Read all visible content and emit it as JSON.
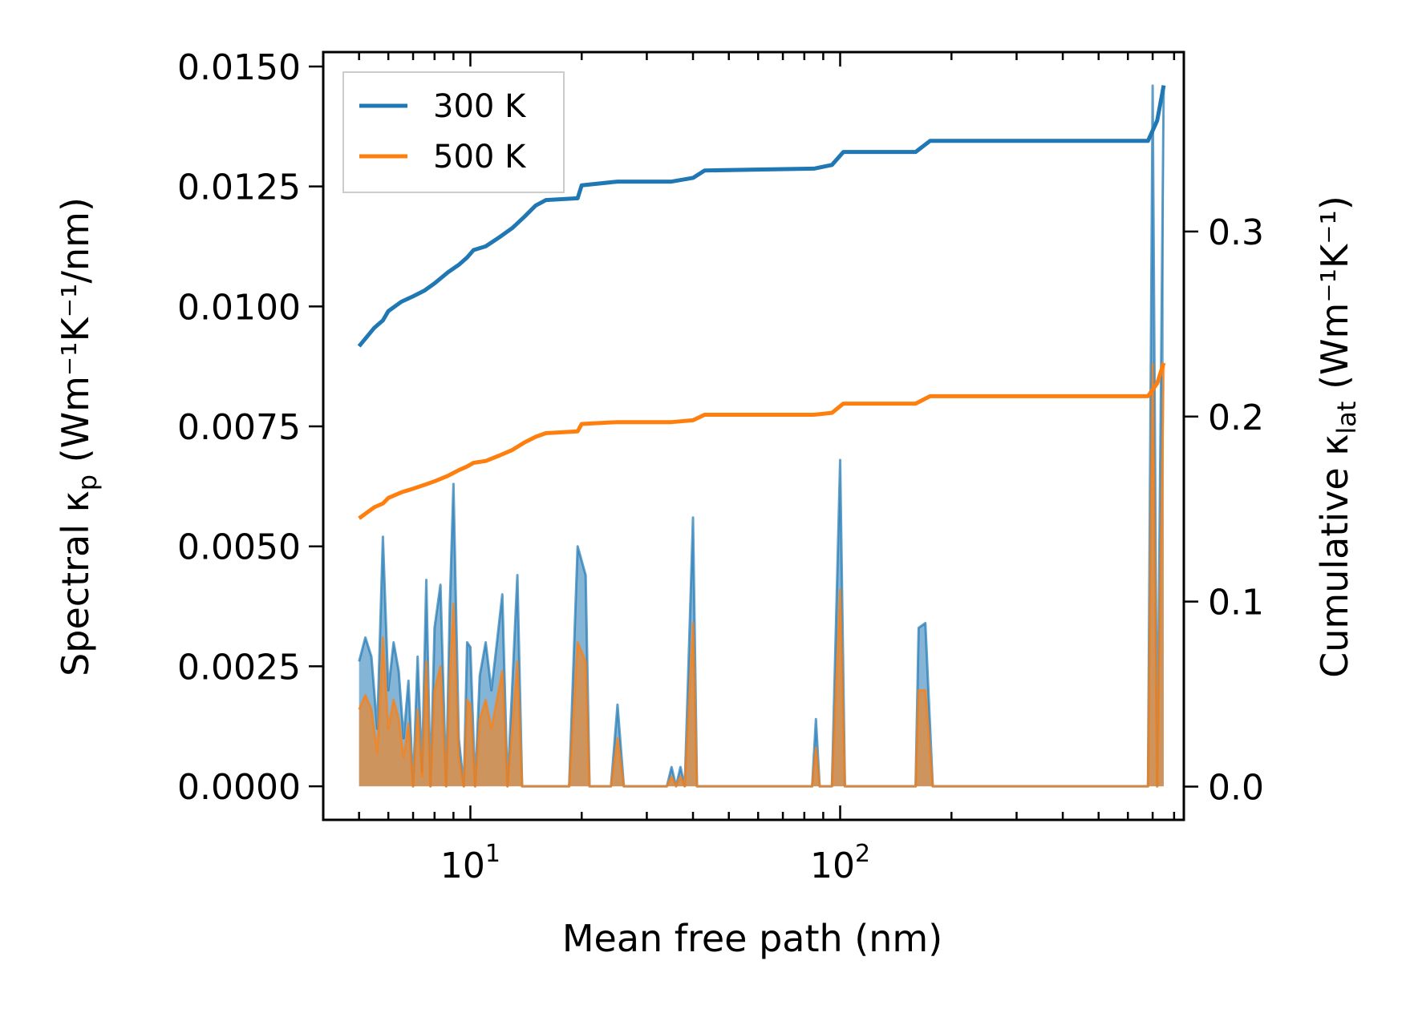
{
  "chart_data": {
    "type": "line",
    "title": "",
    "xlabel": "Mean free path (nm)",
    "ylabel_left": {
      "text": "Spectral κ",
      "sub": "p",
      "unit": " (Wm⁻¹K⁻¹/nm)"
    },
    "ylabel_right": {
      "text": "Cumulative κ",
      "sub": "lat",
      "unit": " (Wm⁻¹K⁻¹)"
    },
    "xscale": "log",
    "xlim": [
      4.0,
      850
    ],
    "ylim_left": [
      -0.0007,
      0.0153
    ],
    "ylim_right": [
      -0.018,
      0.397
    ],
    "x_ticks": [
      {
        "base": "10",
        "exp": "1",
        "value": 10
      },
      {
        "base": "10",
        "exp": "2",
        "value": 100
      }
    ],
    "y_ticks_left": [
      {
        "label": "0.0000",
        "value": 0.0
      },
      {
        "label": "0.0025",
        "value": 0.0025
      },
      {
        "label": "0.0050",
        "value": 0.005
      },
      {
        "label": "0.0075",
        "value": 0.0075
      },
      {
        "label": "0.0100",
        "value": 0.01
      },
      {
        "label": "0.0125",
        "value": 0.0125
      },
      {
        "label": "0.0150",
        "value": 0.015
      }
    ],
    "y_ticks_right": [
      {
        "label": "0.0",
        "value": 0.0
      },
      {
        "label": "0.1",
        "value": 0.1
      },
      {
        "label": "0.2",
        "value": 0.2
      },
      {
        "label": "0.3",
        "value": 0.3
      }
    ],
    "legend": {
      "position": "upper-left",
      "entries": [
        {
          "label": "300 K",
          "color": "#1f77b4"
        },
        {
          "label": "500 K",
          "color": "#ff7f0e"
        }
      ]
    },
    "series": [
      {
        "name": "300 K",
        "color": "#1f77b4",
        "cumulative": {
          "x": [
            5.0,
            5.5,
            5.8,
            6.0,
            6.5,
            7.0,
            7.5,
            8.0,
            8.7,
            9.3,
            9.8,
            10.2,
            11.0,
            12.0,
            13.0,
            14.0,
            15.0,
            16.0,
            19.5,
            20.0,
            25.0,
            27.0,
            35.0,
            40.0,
            43.0,
            85.0,
            95.0,
            102.0,
            120.0,
            160.0,
            175.0,
            680.0,
            720.0,
            750.0
          ],
          "y": [
            0.238,
            0.248,
            0.252,
            0.257,
            0.262,
            0.265,
            0.268,
            0.272,
            0.278,
            0.282,
            0.286,
            0.29,
            0.292,
            0.297,
            0.302,
            0.308,
            0.314,
            0.317,
            0.318,
            0.325,
            0.327,
            0.327,
            0.327,
            0.329,
            0.333,
            0.334,
            0.336,
            0.343,
            0.343,
            0.343,
            0.349,
            0.349,
            0.36,
            0.379
          ]
        },
        "spectral": {
          "x": [
            5.0,
            5.2,
            5.4,
            5.6,
            5.8,
            6.0,
            6.2,
            6.4,
            6.6,
            6.8,
            7.0,
            7.2,
            7.4,
            7.6,
            7.8,
            8.0,
            8.3,
            8.6,
            8.8,
            9.0,
            9.3,
            9.6,
            9.8,
            10.0,
            10.3,
            10.6,
            11.0,
            11.4,
            11.8,
            12.2,
            12.6,
            13.0,
            13.4,
            13.8,
            14.2,
            14.6,
            15.0,
            15.5,
            16.0,
            16.5,
            18.5,
            19.5,
            20.5,
            21.0,
            24.0,
            25.0,
            26.0,
            34.0,
            35.0,
            36.0,
            37.0,
            38.0,
            40.0,
            41.0,
            42.0,
            84.0,
            86.0,
            88.0,
            95.0,
            100.0,
            103.0,
            108.0,
            160.0,
            163.0,
            170.0,
            178.0,
            680.0,
            700.0,
            720.0,
            750.0
          ],
          "y": [
            0.0026,
            0.0031,
            0.0027,
            0.0012,
            0.0052,
            0.002,
            0.003,
            0.0024,
            0.001,
            0.0022,
            0.0,
            0.0027,
            0.0003,
            0.0043,
            0.0,
            0.0033,
            0.0042,
            0.0,
            0.0038,
            0.0063,
            0.001,
            0.0,
            0.003,
            0.0029,
            0.0,
            0.0023,
            0.003,
            0.002,
            0.003,
            0.004,
            0.0,
            0.0022,
            0.0044,
            0.0,
            0.0,
            0.0,
            0.0,
            0.0,
            0.0,
            0.0,
            0.0,
            0.005,
            0.0044,
            0.0,
            0.0,
            0.0017,
            0.0,
            0.0,
            0.0004,
            0.0,
            0.0004,
            0.0,
            0.0056,
            0.0,
            0.0,
            0.0,
            0.0014,
            0.0,
            0.0,
            0.0068,
            0.0,
            0.0,
            0.0,
            0.0033,
            0.0034,
            0.0,
            0.0,
            0.0146,
            0.0,
            0.0146
          ]
        }
      },
      {
        "name": "500 K",
        "color": "#ff7f0e",
        "cumulative": {
          "x": [
            5.0,
            5.5,
            5.8,
            6.0,
            6.5,
            7.0,
            7.5,
            8.0,
            8.7,
            9.3,
            9.8,
            10.2,
            11.0,
            12.0,
            13.0,
            14.0,
            15.0,
            16.0,
            19.5,
            20.0,
            25.0,
            27.0,
            35.0,
            40.0,
            43.0,
            85.0,
            95.0,
            102.0,
            120.0,
            160.0,
            175.0,
            680.0,
            720.0,
            750.0
          ],
          "y": [
            0.145,
            0.151,
            0.153,
            0.156,
            0.159,
            0.161,
            0.163,
            0.165,
            0.168,
            0.171,
            0.173,
            0.175,
            0.176,
            0.179,
            0.182,
            0.186,
            0.189,
            0.191,
            0.192,
            0.196,
            0.197,
            0.197,
            0.197,
            0.198,
            0.201,
            0.201,
            0.202,
            0.207,
            0.207,
            0.207,
            0.211,
            0.211,
            0.218,
            0.229
          ]
        },
        "spectral": {
          "x": [
            5.0,
            5.2,
            5.4,
            5.6,
            5.8,
            6.0,
            6.2,
            6.4,
            6.6,
            6.8,
            7.0,
            7.2,
            7.4,
            7.6,
            7.8,
            8.0,
            8.3,
            8.6,
            8.8,
            9.0,
            9.3,
            9.6,
            9.8,
            10.0,
            10.3,
            10.6,
            11.0,
            11.4,
            11.8,
            12.2,
            12.6,
            13.0,
            13.4,
            13.8,
            14.2,
            14.6,
            15.0,
            15.5,
            16.0,
            16.5,
            18.5,
            19.5,
            20.5,
            21.0,
            24.0,
            25.0,
            26.0,
            34.0,
            35.0,
            36.0,
            37.0,
            38.0,
            40.0,
            41.0,
            42.0,
            84.0,
            86.0,
            88.0,
            95.0,
            100.0,
            103.0,
            108.0,
            160.0,
            163.0,
            170.0,
            178.0,
            680.0,
            700.0,
            720.0,
            750.0
          ],
          "y": [
            0.0016,
            0.0019,
            0.0016,
            0.0007,
            0.0031,
            0.0012,
            0.0018,
            0.0014,
            0.0006,
            0.0013,
            0.0,
            0.0016,
            0.0002,
            0.0026,
            0.0,
            0.002,
            0.0025,
            0.0,
            0.0023,
            0.0038,
            0.0006,
            0.0,
            0.0018,
            0.0017,
            0.0,
            0.0014,
            0.0018,
            0.0012,
            0.0018,
            0.0024,
            0.0,
            0.0013,
            0.0026,
            0.0,
            0.0,
            0.0,
            0.0,
            0.0,
            0.0,
            0.0,
            0.0,
            0.003,
            0.0026,
            0.0,
            0.0,
            0.001,
            0.0,
            0.0,
            0.0002,
            0.0,
            0.0002,
            0.0,
            0.0034,
            0.0,
            0.0,
            0.0,
            0.0008,
            0.0,
            0.0,
            0.0041,
            0.0,
            0.0,
            0.0,
            0.002,
            0.002,
            0.0,
            0.0,
            0.0088,
            0.0,
            0.0088
          ]
        }
      }
    ]
  }
}
